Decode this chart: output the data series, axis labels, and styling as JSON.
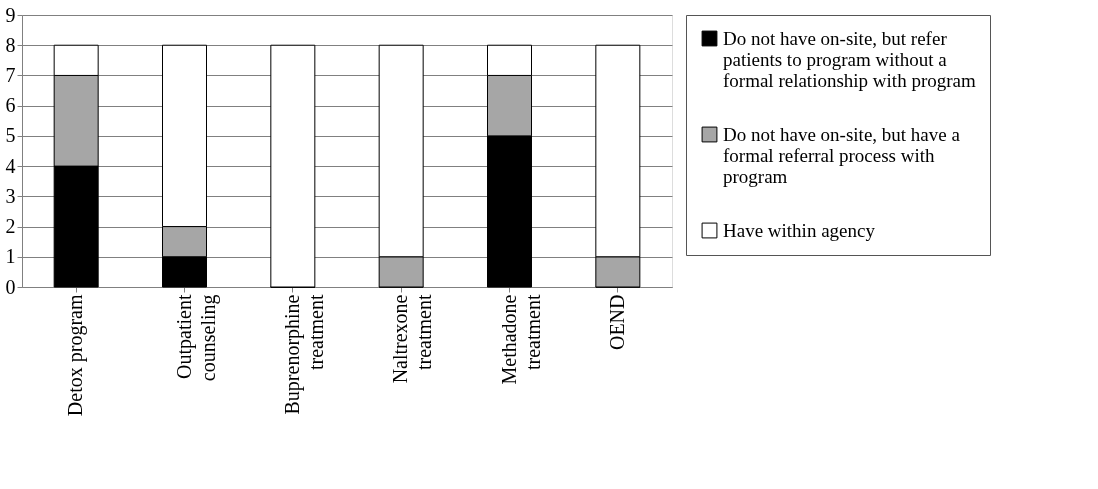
{
  "chart_data": {
    "type": "bar",
    "stacked": true,
    "categories": [
      "Detox program",
      "Outpatient counseling",
      "Buprenorphine treatment",
      "Naltrexone treatment",
      "Methadone treatment",
      "OEND"
    ],
    "series": [
      {
        "name": "Do not have on-site, but refer patients to program without a formal relationship with program",
        "color": "#000000",
        "values": [
          4,
          1,
          0,
          0,
          5,
          0
        ]
      },
      {
        "name": "Do not have on-site, but have a formal referral process with program",
        "color": "#a6a6a6",
        "values": [
          3,
          1,
          0,
          1,
          2,
          1
        ]
      },
      {
        "name": "Have within agency",
        "color": "#ffffff",
        "values": [
          1,
          6,
          8,
          7,
          1,
          7
        ]
      }
    ],
    "ylim": [
      0,
      9
    ],
    "yticks": [
      0,
      1,
      2,
      3,
      4,
      5,
      6,
      7,
      8,
      9
    ],
    "grid": "y",
    "legend": "right"
  }
}
